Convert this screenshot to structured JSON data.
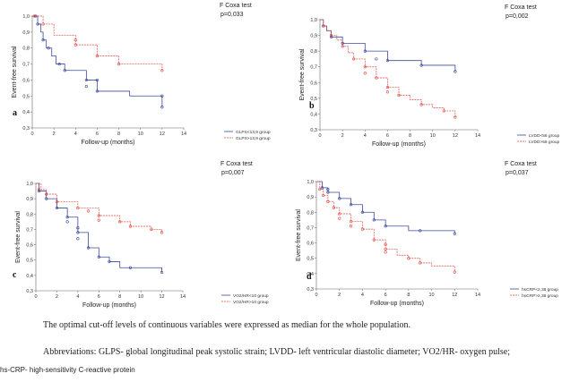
{
  "chart_data": [
    {
      "type": "line",
      "subtype": "kaplan-meier",
      "panel": "a",
      "test_label": "F Coxa test",
      "p_value": "p=0,033",
      "xlabel": "Follow-up (months)",
      "ylabel": "Event-free survival",
      "xlim": [
        0,
        14
      ],
      "ylim": [
        0.3,
        1.0
      ],
      "xticks": [
        "0",
        "2",
        "4",
        "6",
        "8",
        "10",
        "12",
        "14"
      ],
      "yticks": [
        "0,3",
        "0,4",
        "0,5",
        "0,6",
        "0,7",
        "0,8",
        "0,9",
        "1,0"
      ],
      "colors": [
        "#3b4a9c",
        "#e0473f"
      ],
      "series": [
        {
          "name": "GLPS<13,9 group",
          "x": [
            0,
            0.5,
            0.8,
            1.0,
            1.3,
            1.8,
            2.2,
            3.0,
            5.0,
            6.0,
            9.0,
            12.0
          ],
          "y": [
            1.0,
            0.95,
            0.9,
            0.85,
            0.8,
            0.75,
            0.7,
            0.66,
            0.6,
            0.53,
            0.5,
            0.43
          ],
          "censored_x": [
            0.3,
            0.5,
            1.0,
            1.5,
            2.5,
            3.0,
            5.0,
            5.0,
            6.0,
            6.0,
            12.0,
            12.0
          ],
          "censored_y": [
            1.0,
            0.95,
            0.85,
            0.8,
            0.7,
            0.66,
            0.6,
            0.56,
            0.6,
            0.53,
            0.5,
            0.43
          ]
        },
        {
          "name": "GLPS>13,9 group",
          "x": [
            0,
            1.0,
            2.0,
            4.0,
            6.0,
            8.0,
            12.0
          ],
          "y": [
            1.0,
            0.95,
            0.88,
            0.82,
            0.75,
            0.7,
            0.66
          ],
          "censored_x": [
            0.2,
            1.0,
            4.0,
            4.0,
            6.0,
            8.0,
            12.0
          ],
          "censored_y": [
            1.0,
            0.95,
            0.85,
            0.82,
            0.75,
            0.7,
            0.66
          ]
        }
      ]
    },
    {
      "type": "line",
      "subtype": "kaplan-meier",
      "panel": "b",
      "test_label": "F Coxa test",
      "p_value": "p=0,002",
      "xlabel": "Follow-up (months)",
      "ylabel": "Event-free survival",
      "xlim": [
        0,
        14
      ],
      "ylim": [
        0.3,
        1.0
      ],
      "xticks": [
        "0",
        "2",
        "4",
        "6",
        "8",
        "10",
        "12",
        "14"
      ],
      "yticks": [
        "0,3",
        "0,4",
        "0,5",
        "0,6",
        "0,7",
        "0,8",
        "0,9",
        "1,0"
      ],
      "colors": [
        "#3b4a9c",
        "#e0473f"
      ],
      "series": [
        {
          "name": "LVDD<56 group",
          "x": [
            0,
            0.3,
            0.6,
            1.0,
            2.0,
            4.0,
            6.0,
            9.0,
            12.0
          ],
          "y": [
            1.0,
            0.96,
            0.93,
            0.89,
            0.85,
            0.8,
            0.74,
            0.71,
            0.67
          ],
          "censored_x": [
            0.3,
            1.0,
            2.0,
            4.0,
            5.0,
            6.0,
            9.0,
            12.0
          ],
          "censored_y": [
            0.96,
            0.89,
            0.85,
            0.8,
            0.75,
            0.74,
            0.71,
            0.67
          ]
        },
        {
          "name": "LVDD>56 group",
          "x": [
            0,
            0.3,
            0.6,
            1.0,
            1.5,
            2.0,
            2.5,
            3.0,
            4.0,
            5.0,
            6.0,
            7.0,
            8.0,
            9.0,
            10.0,
            11.0,
            12.0
          ],
          "y": [
            1.0,
            0.96,
            0.93,
            0.9,
            0.87,
            0.83,
            0.79,
            0.75,
            0.7,
            0.63,
            0.57,
            0.52,
            0.49,
            0.46,
            0.44,
            0.42,
            0.38
          ],
          "censored_x": [
            0.3,
            1.0,
            2.0,
            3.0,
            4.0,
            4.0,
            5.0,
            6.0,
            6.0,
            7.0,
            9.0,
            11.0,
            12.0
          ],
          "censored_y": [
            0.96,
            0.9,
            0.83,
            0.75,
            0.7,
            0.66,
            0.63,
            0.57,
            0.54,
            0.52,
            0.46,
            0.42,
            0.38
          ]
        }
      ]
    },
    {
      "type": "line",
      "subtype": "kaplan-meier",
      "panel": "c",
      "test_label": "F Coxa test",
      "p_value": "p=0,007",
      "xlabel": "Follow-up (months)",
      "ylabel": "Event-free survival",
      "xlim": [
        0,
        14
      ],
      "ylim": [
        0.3,
        1.0
      ],
      "xticks": [
        "0",
        "2",
        "4",
        "6",
        "8",
        "10",
        "12",
        "14"
      ],
      "yticks": [
        "0,3",
        "0,4",
        "0,5",
        "0,6",
        "0,7",
        "0,8",
        "0,9",
        "1,0"
      ],
      "colors": [
        "#3b4a9c",
        "#e0473f"
      ],
      "series": [
        {
          "name": "VO2/HR<10 group",
          "x": [
            0,
            0.3,
            1.0,
            2.0,
            3.0,
            4.0,
            5.0,
            6.0,
            7.0,
            8.0,
            12.0
          ],
          "y": [
            1.0,
            0.95,
            0.9,
            0.84,
            0.78,
            0.68,
            0.58,
            0.52,
            0.49,
            0.45,
            0.42
          ],
          "censored_x": [
            0.3,
            1.0,
            2.0,
            3.0,
            3.0,
            4.0,
            4.0,
            4.0,
            5.0,
            6.0,
            7.0,
            9.0,
            12.0
          ],
          "censored_y": [
            0.95,
            0.9,
            0.84,
            0.78,
            0.75,
            0.71,
            0.68,
            0.64,
            0.58,
            0.52,
            0.49,
            0.45,
            0.42
          ]
        },
        {
          "name": "VO2/HR>10 group",
          "x": [
            0,
            0.5,
            1.0,
            2.0,
            4.0,
            6.0,
            8.0,
            9.0,
            11.0,
            12.0
          ],
          "y": [
            1.0,
            0.96,
            0.93,
            0.88,
            0.84,
            0.79,
            0.75,
            0.72,
            0.7,
            0.68
          ],
          "censored_x": [
            0.3,
            1.0,
            2.0,
            4.0,
            5.0,
            6.0,
            6.0,
            8.0,
            9.0,
            11.0,
            12.0
          ],
          "censored_y": [
            0.96,
            0.93,
            0.88,
            0.84,
            0.82,
            0.79,
            0.76,
            0.75,
            0.72,
            0.7,
            0.68
          ]
        }
      ]
    },
    {
      "type": "line",
      "subtype": "kaplan-meier",
      "panel": "d",
      "test_label": "F Coxa test",
      "p_value": "p=0,037",
      "xlabel": "Follow-up (months)",
      "ylabel": "Event-free survival",
      "xlim": [
        0,
        14
      ],
      "ylim": [
        0.3,
        1.0
      ],
      "xticks": [
        "0",
        "2",
        "4",
        "6",
        "8",
        "10",
        "12",
        "14"
      ],
      "yticks": [
        "0,3",
        "0,4",
        "0,5",
        "0,6",
        "0,7",
        "0,8",
        "0,9",
        "1,0"
      ],
      "colors": [
        "#3b4a9c",
        "#e0473f"
      ],
      "series": [
        {
          "name": "hsCRP<2,38 group",
          "x": [
            0,
            0.5,
            1.0,
            2.0,
            3.0,
            4.0,
            5.0,
            6.0,
            8.0,
            12.0
          ],
          "y": [
            1.0,
            0.96,
            0.93,
            0.89,
            0.85,
            0.8,
            0.75,
            0.71,
            0.68,
            0.66
          ],
          "censored_x": [
            0.5,
            1.0,
            1.0,
            2.0,
            3.0,
            4.0,
            5.0,
            6.0,
            9.0,
            12.0
          ],
          "censored_y": [
            0.96,
            0.95,
            0.93,
            0.89,
            0.85,
            0.8,
            0.75,
            0.71,
            0.68,
            0.66
          ]
        },
        {
          "name": "hsCRP>2,38 group",
          "x": [
            0,
            0.3,
            0.6,
            1.0,
            1.5,
            2.0,
            3.0,
            4.0,
            5.0,
            6.0,
            7.0,
            8.0,
            9.0,
            10.0,
            12.0
          ],
          "y": [
            1.0,
            0.95,
            0.91,
            0.87,
            0.83,
            0.79,
            0.74,
            0.69,
            0.62,
            0.56,
            0.52,
            0.5,
            0.47,
            0.45,
            0.41
          ],
          "censored_x": [
            0.3,
            0.6,
            1.0,
            1.5,
            2.0,
            2.0,
            3.0,
            3.0,
            4.0,
            5.0,
            6.0,
            6.0,
            6.0,
            8.0,
            9.0,
            12.0
          ],
          "censored_y": [
            0.95,
            0.91,
            0.87,
            0.83,
            0.79,
            0.76,
            0.74,
            0.71,
            0.69,
            0.62,
            0.59,
            0.56,
            0.54,
            0.5,
            0.47,
            0.41
          ]
        }
      ]
    }
  ],
  "caption": {
    "note": "The optimal cut-off levels of continuous variables were expressed as median for the whole population.",
    "abbrev_label": "Abbreviations:",
    "abbrev_text": "GLPS- global longitudinal peak systolic strain; LVDD- left ventricular diastolic diameter; VO2/HR- oxygen pulse;",
    "abbrev_cont": "hs-CRP- high-sensitivity C-reactive protein"
  }
}
